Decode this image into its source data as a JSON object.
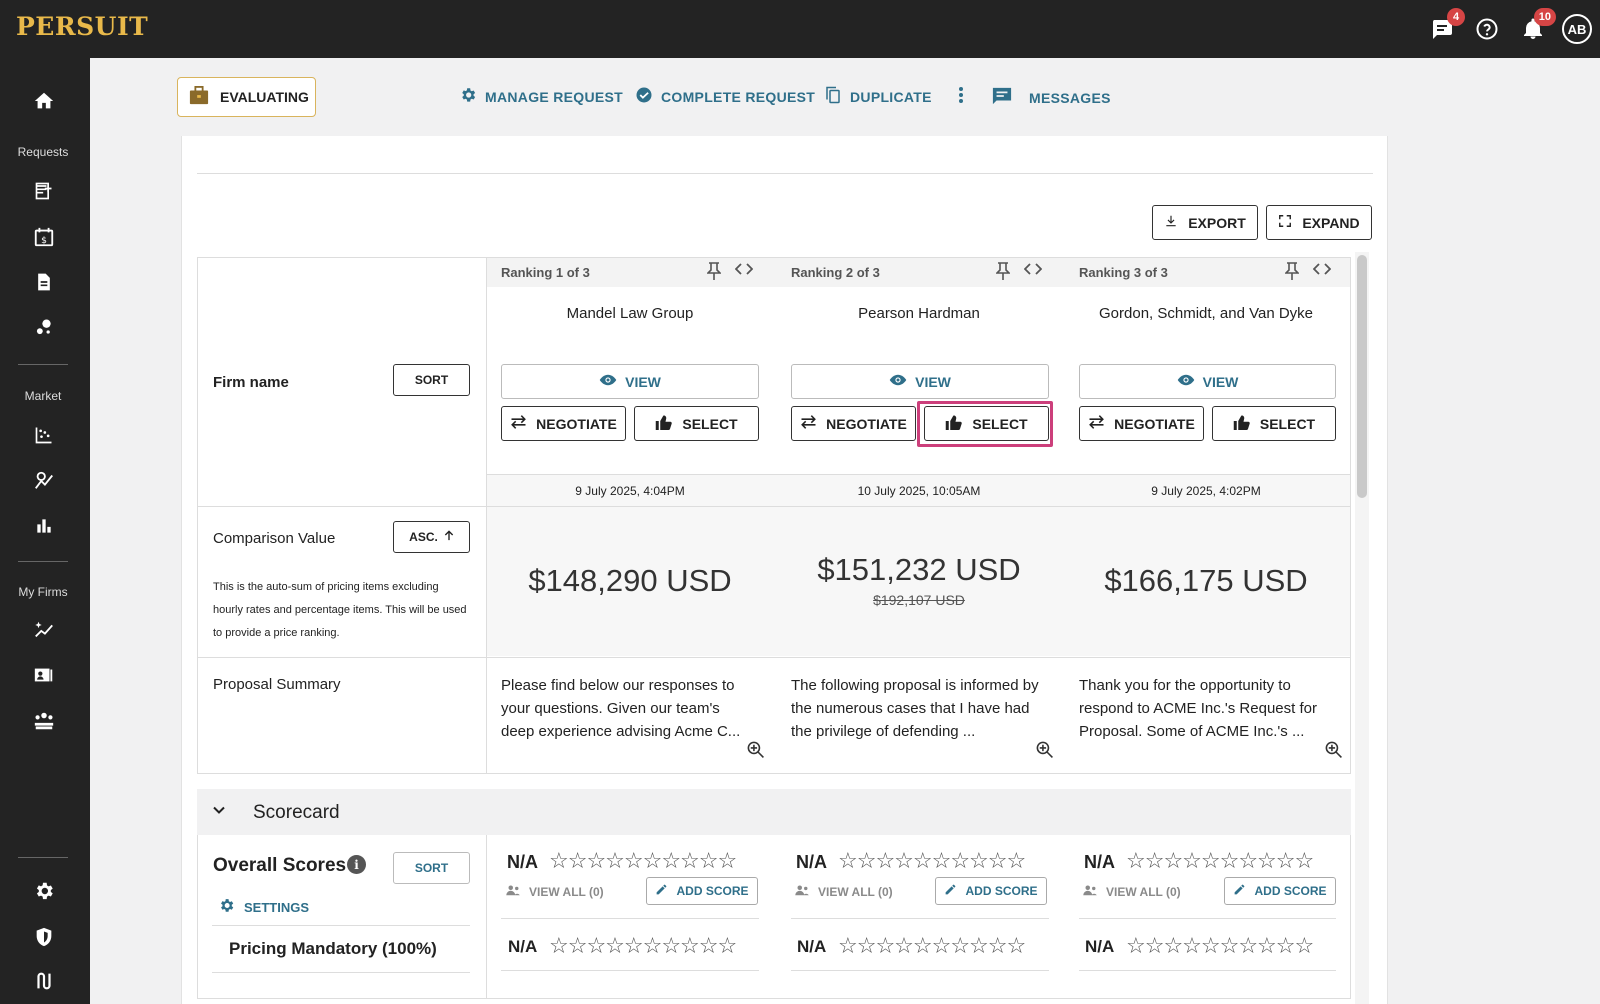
{
  "app": {
    "logo": "PERSUIT"
  },
  "topbar": {
    "messages_badge": "4",
    "notifications_badge": "10",
    "avatar": "AB"
  },
  "sidebar": {
    "sections": {
      "requests": "Requests",
      "market": "Market",
      "my_firms": "My Firms"
    }
  },
  "actionbar": {
    "status": "EVALUATING",
    "manage": "MANAGE REQUEST",
    "complete": "COMPLETE REQUEST",
    "duplicate": "DUPLICATE",
    "messages": "MESSAGES"
  },
  "toolbar": {
    "export": "EXPORT",
    "expand": "EXPAND"
  },
  "rows": {
    "firm_name": "Firm name",
    "sort": "SORT",
    "comparison_value": "Comparison Value",
    "asc": "ASC.",
    "comparison_desc": "This is the auto-sum of pricing items excluding hourly rates and percentage items. This will be used to provide a price ranking.",
    "proposal_summary": "Proposal Summary"
  },
  "firms": [
    {
      "rank": "Ranking 1 of 3",
      "name": "Mandel Law Group",
      "view": "VIEW",
      "negotiate": "NEGOTIATE",
      "select": "SELECT",
      "date": "9 July 2025, 4:04PM",
      "price": "$148,290 USD",
      "old_price": "",
      "summary": "Please find below our responses to your questions.  Given our team's deep experience advising Acme C...",
      "overall": "N/A",
      "view_all": "VIEW ALL (0)",
      "add_score": "ADD SCORE",
      "pricing": "N/A"
    },
    {
      "rank": "Ranking 2 of 3",
      "name": "Pearson Hardman",
      "view": "VIEW",
      "negotiate": "NEGOTIATE",
      "select": "SELECT",
      "date": "10 July 2025, 10:05AM",
      "price": "$151,232 USD",
      "old_price": "$192,107 USD",
      "summary": "The following proposal is informed by the numerous cases that I have had the privilege of defending ...",
      "overall": "N/A",
      "view_all": "VIEW ALL (0)",
      "add_score": "ADD SCORE",
      "pricing": "N/A"
    },
    {
      "rank": "Ranking 3 of 3",
      "name": "Gordon, Schmidt, and Van Dyke",
      "view": "VIEW",
      "negotiate": "NEGOTIATE",
      "select": "SELECT",
      "date": "9 July 2025, 4:02PM",
      "price": "$166,175 USD",
      "old_price": "",
      "summary": "Thank you for the opportunity to respond to ACME Inc.'s Request for Proposal.   Some of ACME Inc.'s ...",
      "overall": "N/A",
      "view_all": "VIEW ALL (0)",
      "add_score": "ADD SCORE",
      "pricing": "N/A"
    }
  ],
  "scorecard": {
    "title": "Scorecard",
    "overall": "Overall Scores",
    "info": "i",
    "sort": "SORT",
    "settings": "SETTINGS",
    "pricing_mandatory": "Pricing Mandatory (100%)",
    "stars": "☆☆☆☆☆☆☆☆☆☆"
  },
  "colors": {
    "accent": "#2f6f8a",
    "brand": "#e9b94a",
    "highlight": "#cc3f7b"
  }
}
